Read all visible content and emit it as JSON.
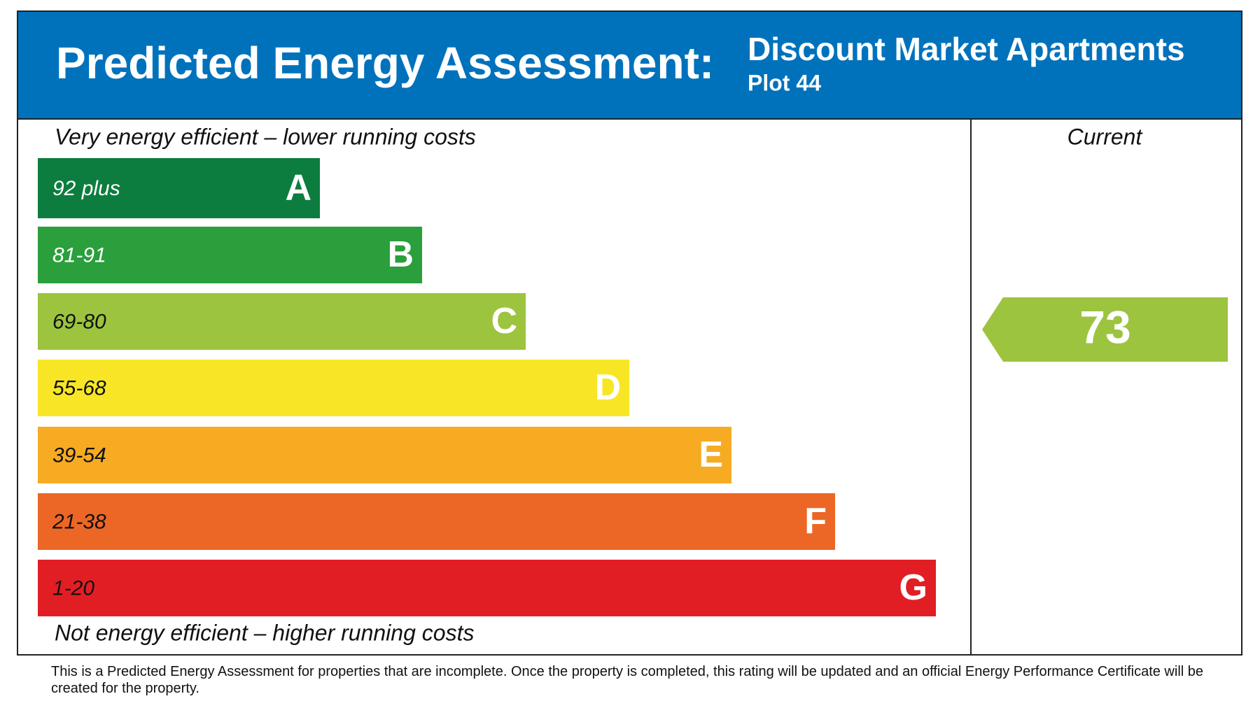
{
  "header": {
    "title": "Predicted Energy Assessment:",
    "property": "Discount Market Apartments",
    "plot": "Plot 44"
  },
  "top_note": "Very energy efficient – lower running costs",
  "bottom_note": "Not energy efficient – higher running costs",
  "bands": [
    {
      "range": "92 plus",
      "letter": "A",
      "color": "#0c7d3e",
      "text_color": "#ffffff"
    },
    {
      "range": "81-91",
      "letter": "B",
      "color": "#2a9f3b",
      "text_color": "#ffffff"
    },
    {
      "range": "69-80",
      "letter": "C",
      "color": "#9cc43e",
      "text_color": "#111111"
    },
    {
      "range": "55-68",
      "letter": "D",
      "color": "#f8e626",
      "text_color": "#111111"
    },
    {
      "range": "39-54",
      "letter": "E",
      "color": "#f6ab22",
      "text_color": "#111111"
    },
    {
      "range": "21-38",
      "letter": "F",
      "color": "#ec6726",
      "text_color": "#111111"
    },
    {
      "range": "1-20",
      "letter": "G",
      "color": "#e21e25",
      "text_color": "#111111"
    }
  ],
  "current": {
    "label": "Current",
    "value": 73,
    "color": "#9cc43e"
  },
  "footnote": "This is a Predicted Energy Assessment for properties that are incomplete. Once the property is completed, this rating will be updated and an official Energy Performance Certificate will be created for the property."
}
